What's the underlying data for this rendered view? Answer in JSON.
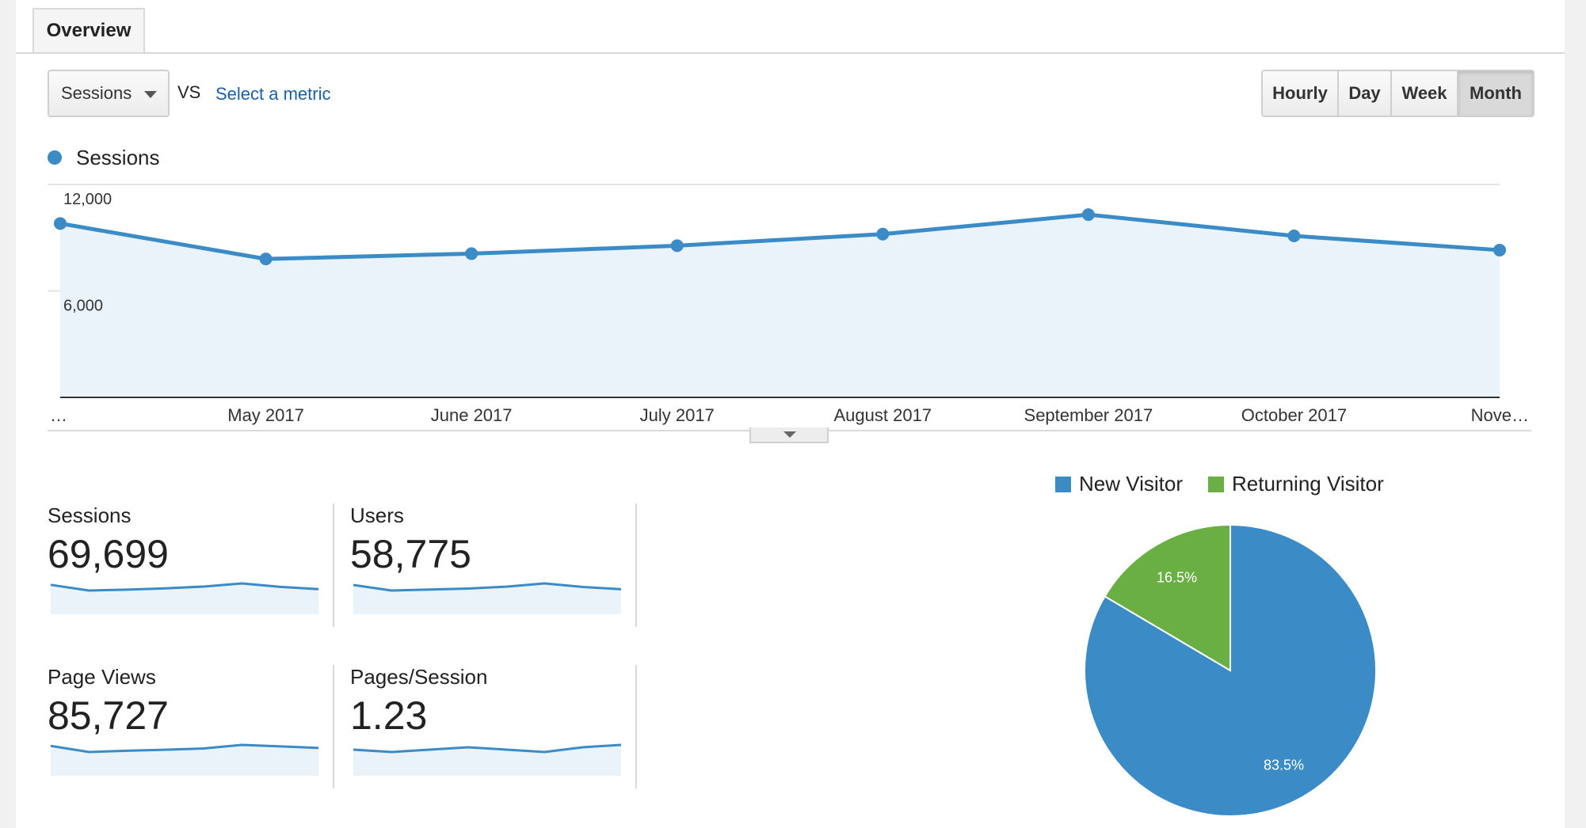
{
  "tabs": [
    "Overview"
  ],
  "controls": {
    "metric_selected": "Sessions",
    "vs_label": "VS",
    "compare_link": "Select a metric",
    "granularity": [
      "Hourly",
      "Day",
      "Week",
      "Month"
    ],
    "granularity_selected": "Month"
  },
  "colors": {
    "series": "#3a8bc6",
    "area": "#eaf2fa",
    "new_visitor": "#3a8bc6",
    "returning_visitor": "#6aaf44"
  },
  "chart_data": [
    {
      "type": "area",
      "series": [
        {
          "name": "Sessions",
          "values": [
            9800,
            7800,
            8100,
            8550,
            9200,
            10300,
            9100,
            8300
          ]
        }
      ],
      "x_labels": [
        "…",
        "May 2017",
        "June 2017",
        "July 2017",
        "August 2017",
        "September 2017",
        "October 2017",
        "Nove…"
      ],
      "y_ticks": [
        12000,
        6000
      ],
      "y_tick_labels": [
        "12,000",
        "6,000"
      ],
      "ylim": [
        0,
        12000
      ],
      "grid": true,
      "legend": "top-left"
    },
    {
      "type": "pie",
      "categories": [
        "New Visitor",
        "Returning Visitor"
      ],
      "values": [
        83.5,
        16.5
      ],
      "labels": [
        "83.5%",
        "16.5%"
      ],
      "legend": "top"
    }
  ],
  "kpis": [
    {
      "label": "Sessions",
      "value": "69,699",
      "trend": [
        9800,
        7800,
        8100,
        8550,
        9200,
        10300,
        9100,
        8300
      ]
    },
    {
      "label": "Users",
      "value": "58,775",
      "trend": [
        8300,
        6600,
        6900,
        7200,
        7800,
        8800,
        7700,
        7000
      ]
    },
    {
      "label": "Page Views",
      "value": "85,727",
      "trend": [
        12100,
        9700,
        10200,
        10600,
        11100,
        12500,
        11900,
        11300
      ]
    },
    {
      "label": "Pages/Session",
      "value": "1.23",
      "trend": [
        1.23,
        1.22,
        1.23,
        1.24,
        1.23,
        1.22,
        1.24,
        1.25
      ]
    }
  ]
}
